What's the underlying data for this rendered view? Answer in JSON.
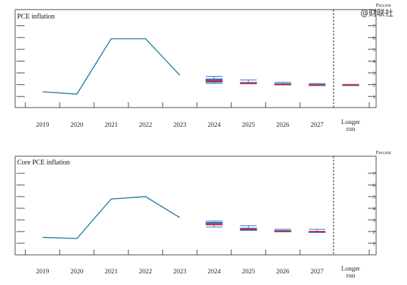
{
  "watermark": "@财联社",
  "chart_data": [
    {
      "type": "line",
      "title": "PCE inflation",
      "unit_label": "Percent",
      "categories": [
        "2019",
        "2020",
        "2021",
        "2022",
        "2023",
        "2024",
        "2025",
        "2026",
        "2027",
        "Longer run"
      ],
      "ylim": [
        0,
        7
      ],
      "yticks": [
        1,
        2,
        3,
        4,
        5,
        6,
        7
      ],
      "grid": false,
      "history": {
        "years": [
          "2019",
          "2020",
          "2021",
          "2022",
          "2023"
        ],
        "values": [
          1.4,
          1.2,
          5.9,
          5.9,
          2.8
        ]
      },
      "projections": [
        {
          "year": "2024",
          "median": 2.3,
          "central_low": 2.2,
          "central_high": 2.5,
          "range_low": 2.1,
          "range_high": 2.7
        },
        {
          "year": "2025",
          "median": 2.1,
          "central_low": 2.1,
          "central_high": 2.2,
          "range_low": 2.1,
          "range_high": 2.4
        },
        {
          "year": "2026",
          "median": 2.0,
          "central_low": 2.0,
          "central_high": 2.1,
          "range_low": 2.0,
          "range_high": 2.2
        },
        {
          "year": "2027",
          "median": 2.0,
          "central_low": 2.0,
          "central_high": 2.0,
          "range_low": 2.0,
          "range_high": 2.1
        },
        {
          "year": "Longer run",
          "median": 2.0,
          "central_low": 2.0,
          "central_high": 2.0,
          "range_low": 2.0,
          "range_high": 2.0
        }
      ]
    },
    {
      "type": "line",
      "title": "Core PCE inflation",
      "unit_label": "Percent",
      "categories": [
        "2019",
        "2020",
        "2021",
        "2022",
        "2023",
        "2024",
        "2025",
        "2026",
        "2027",
        "Longer run"
      ],
      "ylim": [
        0,
        7
      ],
      "yticks": [
        1,
        2,
        3,
        4,
        5,
        6,
        7
      ],
      "grid": false,
      "history": {
        "years": [
          "2019",
          "2020",
          "2021",
          "2022",
          "2023"
        ],
        "values": [
          1.5,
          1.4,
          4.8,
          5.0,
          3.2
        ]
      },
      "projections": [
        {
          "year": "2024",
          "median": 2.6,
          "central_low": 2.6,
          "central_high": 2.8,
          "range_low": 2.4,
          "range_high": 2.9
        },
        {
          "year": "2025",
          "median": 2.2,
          "central_low": 2.1,
          "central_high": 2.3,
          "range_low": 2.1,
          "range_high": 2.5
        },
        {
          "year": "2026",
          "median": 2.0,
          "central_low": 2.0,
          "central_high": 2.1,
          "range_low": 2.0,
          "range_high": 2.2
        },
        {
          "year": "2027",
          "median": 2.0,
          "central_low": 2.0,
          "central_high": 2.0,
          "range_low": 2.0,
          "range_high": 2.2
        }
      ]
    }
  ]
}
